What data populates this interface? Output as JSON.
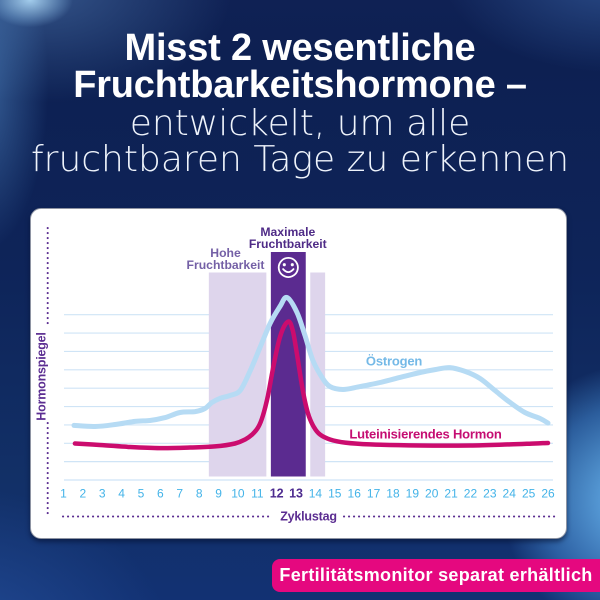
{
  "header": {
    "title_lines": [
      "Misst 2 wesentliche",
      "Fruchtbarkeitshormone –"
    ],
    "subtitle_lines": [
      "entwickelt, um alle",
      "fruchtbaren Tage zu erkennen"
    ]
  },
  "footer_banner": {
    "label": "Fertilitätsmonitor separat erhältlich",
    "color": "#e5087f"
  },
  "chart_data": {
    "type": "line",
    "xlabel": "Zyklustag",
    "ylabel": "Hormonspiegel",
    "x_ticks": [
      1,
      2,
      3,
      4,
      5,
      6,
      7,
      8,
      9,
      10,
      11,
      12,
      13,
      14,
      15,
      16,
      17,
      18,
      19,
      20,
      21,
      22,
      23,
      24,
      25,
      26
    ],
    "highlighted_ticks": [
      12,
      13
    ],
    "xlim": [
      1,
      26
    ],
    "ylim": [
      0,
      115
    ],
    "grid": true,
    "gridline_count": 10,
    "series": [
      {
        "name": "Östrogen",
        "color": "#b6dbf4",
        "label_color": "#74b9e7",
        "points": [
          [
            1.54,
            29.9
          ],
          [
            2.63,
            29.3
          ],
          [
            3.66,
            30.4
          ],
          [
            4.69,
            32.1
          ],
          [
            5.46,
            32.6
          ],
          [
            6.24,
            34.2
          ],
          [
            7.01,
            37.0
          ],
          [
            7.79,
            37.5
          ],
          [
            8.3,
            39.2
          ],
          [
            8.66,
            42.5
          ],
          [
            9.07,
            44.7
          ],
          [
            9.59,
            46.3
          ],
          [
            10.11,
            49.0
          ],
          [
            10.62,
            59.5
          ],
          [
            11.14,
            72.6
          ],
          [
            11.66,
            85.8
          ],
          [
            12.17,
            95.1
          ],
          [
            12.53,
            100.0
          ],
          [
            13.05,
            91.8
          ],
          [
            13.46,
            79.2
          ],
          [
            13.87,
            65.5
          ],
          [
            14.34,
            56.2
          ],
          [
            14.75,
            51.2
          ],
          [
            15.42,
            49.6
          ],
          [
            16.3,
            51.2
          ],
          [
            17.33,
            53.4
          ],
          [
            18.36,
            56.2
          ],
          [
            19.4,
            58.9
          ],
          [
            20.17,
            60.5
          ],
          [
            20.94,
            61.6
          ],
          [
            21.72,
            59.5
          ],
          [
            22.49,
            55.6
          ],
          [
            23.27,
            49.0
          ],
          [
            24.04,
            42.5
          ],
          [
            24.81,
            37.0
          ],
          [
            25.59,
            33.7
          ],
          [
            26.0,
            31.2
          ]
        ]
      },
      {
        "name": "Luteinisierendes Hormon",
        "color": "#cb0c6e",
        "label_color": "#c50d72",
        "points": [
          [
            1.59,
            20.0
          ],
          [
            2.88,
            19.2
          ],
          [
            4.43,
            18.1
          ],
          [
            5.98,
            17.5
          ],
          [
            7.53,
            17.8
          ],
          [
            8.82,
            18.4
          ],
          [
            9.85,
            20.0
          ],
          [
            10.37,
            22.2
          ],
          [
            10.73,
            24.9
          ],
          [
            11.04,
            28.8
          ],
          [
            11.29,
            35.3
          ],
          [
            11.55,
            46.3
          ],
          [
            11.81,
            61.1
          ],
          [
            12.12,
            76.4
          ],
          [
            12.38,
            84.1
          ],
          [
            12.64,
            86.8
          ],
          [
            12.84,
            81.4
          ],
          [
            13.05,
            68.8
          ],
          [
            13.26,
            54.5
          ],
          [
            13.46,
            43.0
          ],
          [
            13.67,
            34.8
          ],
          [
            13.93,
            28.8
          ],
          [
            14.24,
            24.9
          ],
          [
            14.75,
            22.2
          ],
          [
            15.53,
            20.5
          ],
          [
            16.82,
            19.5
          ],
          [
            19.4,
            18.9
          ],
          [
            21.98,
            18.9
          ],
          [
            24.04,
            19.5
          ],
          [
            25.33,
            20.0
          ],
          [
            26.0,
            20.3
          ]
        ]
      }
    ],
    "bands": [
      {
        "id": "high",
        "label_lines": [
          "Hohe",
          "Fruchtbarkeit"
        ],
        "days": [
          8.5,
          14.5
        ],
        "color": "#ded5ec",
        "label_color": "#7460a6"
      },
      {
        "id": "peak",
        "label_lines": [
          "Maximale",
          "Fruchtbarkeit"
        ],
        "days": [
          11.7,
          13.5
        ],
        "color": "#5b2b90",
        "label_color": "#4f2b87",
        "icon": "smiley-icon"
      }
    ],
    "axis_color": "#5b2d91",
    "tick_color": "#43b3e8",
    "highlighted_tick_color": "#4d2b8f",
    "gridline_color": "#cfe4f6"
  }
}
